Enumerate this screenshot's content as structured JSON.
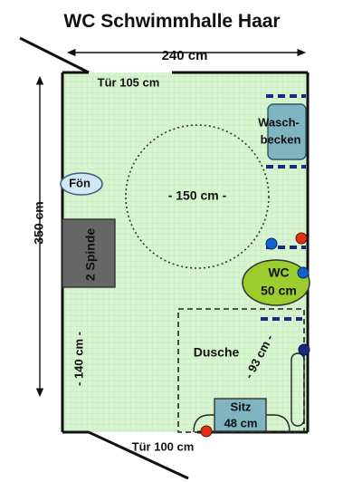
{
  "title": "WC Schwimmhalle Haar",
  "dimensions": {
    "width_label": "240 cm",
    "height_label": "350 cm",
    "turning_circle_label": "- 150 cm -",
    "shower_width_label": "- 140 cm -",
    "shower_depth_label": "- 93 cm -"
  },
  "doors": {
    "top": "Tür 105 cm",
    "bottom": "Tür 100 cm"
  },
  "fixtures": {
    "waschbecken_line1": "Wasch-",
    "waschbecken_line2": "becken",
    "foen": "Fön",
    "spinde": "2 Spinde",
    "wc_line1": "WC",
    "wc_line2": "50 cm",
    "dusche": "Dusche",
    "sitz_line1": "Sitz",
    "sitz_line2": "48 cm"
  },
  "colors": {
    "floor": "#d8f4d0",
    "grid": "#b8e6b0",
    "wall": "#111111",
    "wc": "#9ccc2e",
    "sink": "#7fb4c0",
    "locker": "#666666",
    "button_red": "#e03010",
    "button_blue": "#1060d0",
    "rail": "#1a2a80"
  }
}
